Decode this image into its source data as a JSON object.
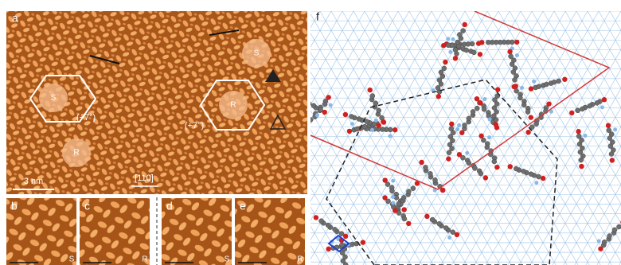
{
  "panel_a": {
    "label": "a",
    "markers": [
      "S",
      "R",
      "R",
      "S"
    ],
    "angles": [
      "(−7°)",
      "(+7°)"
    ],
    "scale_bar": "3 nm",
    "direction": "[110]"
  },
  "panels_small": [
    {
      "label": "b",
      "corner": "S"
    },
    {
      "label": "c",
      "corner": "R"
    },
    {
      "label": "d",
      "corner": "S"
    },
    {
      "label": "e",
      "corner": "R"
    }
  ],
  "panel_f": {
    "label": "f"
  }
}
